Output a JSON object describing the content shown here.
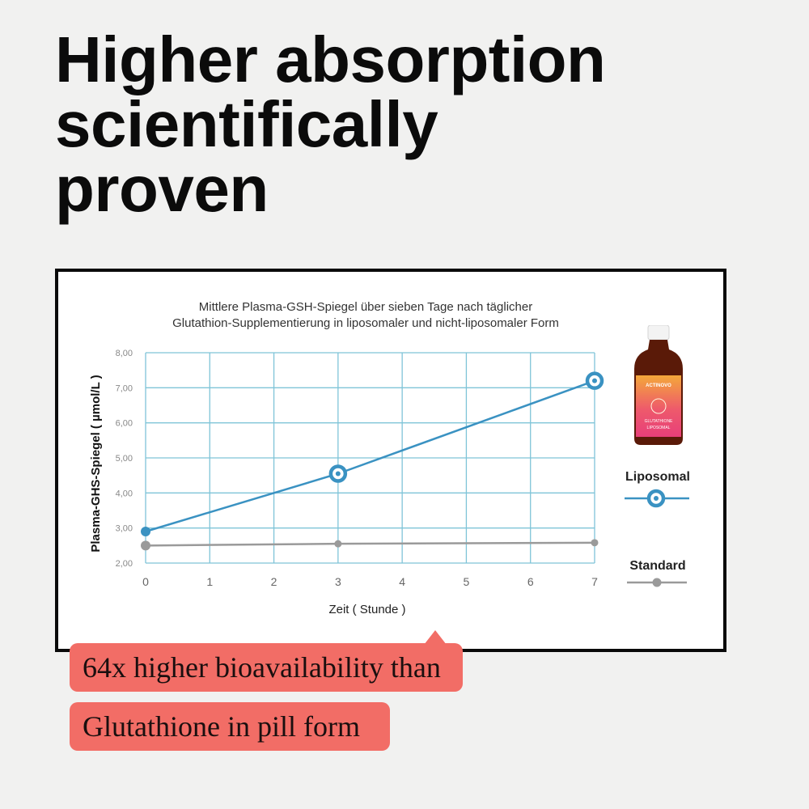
{
  "headline": {
    "line1": "Higher absorption",
    "line2": "scientifically",
    "line3": "proven"
  },
  "chart_data": {
    "type": "line",
    "title_line1": "Mittlere Plasma-GSH-Spiegel über sieben Tage nach täglicher",
    "title_line2": "Glutathion-Supplementierung in liposomaler und nicht-liposomaler Form",
    "xlabel": "Zeit ( Stunde )",
    "ylabel": "Plasma-GHS-Spiegel ( µmol/L )",
    "x_ticks": [
      "0",
      "1",
      "2",
      "3",
      "4",
      "5",
      "6",
      "7"
    ],
    "y_ticks": [
      "2,00",
      "3,00",
      "4,00",
      "5,00",
      "6,00",
      "7,00",
      "8,00"
    ],
    "xlim": [
      0,
      7
    ],
    "ylim": [
      2,
      8
    ],
    "grid": true,
    "legend_placement": "right",
    "series": [
      {
        "name": "Liposomal",
        "color": "#3a92c2",
        "points": [
          {
            "x": 0,
            "y": 2.9
          },
          {
            "x": 3,
            "y": 4.55
          },
          {
            "x": 7,
            "y": 7.2
          }
        ]
      },
      {
        "name": "Standard",
        "color": "#9a9a9a",
        "points": [
          {
            "x": 0,
            "y": 2.5
          },
          {
            "x": 3,
            "y": 2.55
          },
          {
            "x": 7,
            "y": 2.58
          }
        ]
      }
    ]
  },
  "product": {
    "brand": "ACTINOVO",
    "name": "GLUTATHIONE",
    "form": "LIPOSOMAL"
  },
  "callouts": {
    "line1": "64x higher bioavailability than",
    "line2": "Glutathione in pill form"
  },
  "colors": {
    "accent_callout": "#f26d66",
    "grid": "#7fc4d8",
    "liposomal": "#3a92c2",
    "standard": "#9a9a9a"
  }
}
